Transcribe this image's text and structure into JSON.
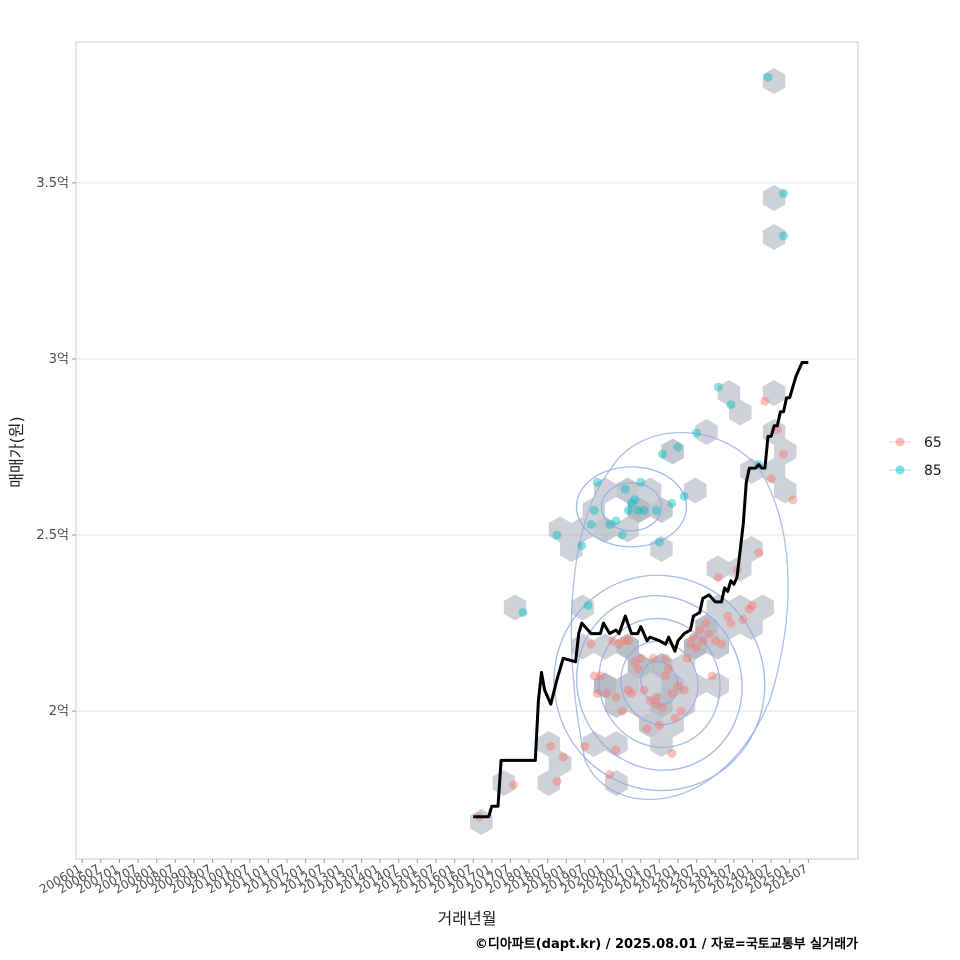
{
  "chart_data": {
    "type": "scatter",
    "xlabel": "거래년월",
    "ylabel": "매매가(원)",
    "caption": "©디아파트(dapt.kr) / 2025.08.01 / 자료=국토교통부 실거래가",
    "x_ticks": [
      "200601",
      "200607",
      "200701",
      "200707",
      "200801",
      "200807",
      "200901",
      "200907",
      "201001",
      "201007",
      "201101",
      "201107",
      "201201",
      "201207",
      "201301",
      "201307",
      "201401",
      "201407",
      "201501",
      "201507",
      "201601",
      "201607",
      "201701",
      "201707",
      "201801",
      "201807",
      "201901",
      "201907",
      "202001",
      "202007",
      "202101",
      "202107",
      "202201",
      "202207",
      "202301",
      "202307",
      "202401",
      "202407",
      "202501",
      "202507"
    ],
    "y_ticks": [
      {
        "value": 2.0,
        "label": "2억"
      },
      {
        "value": 2.5,
        "label": "2.5억"
      },
      {
        "value": 3.0,
        "label": "3억"
      },
      {
        "value": 3.5,
        "label": "3.5억"
      }
    ],
    "y_unit": "억원",
    "ylim": [
      1.58,
      3.9
    ],
    "xlim": [
      "200511",
      "202611"
    ],
    "grid": "horizontal",
    "legend": {
      "position": "right",
      "entries": [
        {
          "label": "65",
          "color": "#F8766D"
        },
        {
          "label": "85",
          "color": "#00BFC4"
        }
      ]
    },
    "line_series": {
      "name": "moving average",
      "color": "#000000",
      "points": [
        [
          "2016-07",
          1.7
        ],
        [
          "2016-12",
          1.7
        ],
        [
          "2017-01",
          1.73
        ],
        [
          "2017-03",
          1.73
        ],
        [
          "2017-04",
          1.86
        ],
        [
          "2018-03",
          1.86
        ],
        [
          "2018-04",
          2.03
        ],
        [
          "2018-05",
          2.11
        ],
        [
          "2018-06",
          2.06
        ],
        [
          "2018-08",
          2.02
        ],
        [
          "2018-10",
          2.09
        ],
        [
          "2018-12",
          2.15
        ],
        [
          "2019-04",
          2.14
        ],
        [
          "2019-05",
          2.22
        ],
        [
          "2019-06",
          2.25
        ],
        [
          "2019-09",
          2.22
        ],
        [
          "2019-12",
          2.22
        ],
        [
          "2020-01",
          2.25
        ],
        [
          "2020-03",
          2.22
        ],
        [
          "2020-05",
          2.23
        ],
        [
          "2020-06",
          2.22
        ],
        [
          "2020-08",
          2.27
        ],
        [
          "2020-10",
          2.22
        ],
        [
          "2020-12",
          2.22
        ],
        [
          "2021-01",
          2.24
        ],
        [
          "2021-03",
          2.2
        ],
        [
          "2021-04",
          2.21
        ],
        [
          "2021-07",
          2.2
        ],
        [
          "2021-09",
          2.19
        ],
        [
          "2021-10",
          2.21
        ],
        [
          "2021-12",
          2.17
        ],
        [
          "2022-01",
          2.2
        ],
        [
          "2022-03",
          2.22
        ],
        [
          "2022-05",
          2.23
        ],
        [
          "2022-06",
          2.27
        ],
        [
          "2022-08",
          2.28
        ],
        [
          "2022-09",
          2.32
        ],
        [
          "2022-11",
          2.33
        ],
        [
          "2023-01",
          2.31
        ],
        [
          "2023-03",
          2.31
        ],
        [
          "2023-04",
          2.35
        ],
        [
          "2023-05",
          2.34
        ],
        [
          "2023-06",
          2.37
        ],
        [
          "2023-07",
          2.36
        ],
        [
          "2023-08",
          2.38
        ],
        [
          "2023-10",
          2.53
        ],
        [
          "2023-11",
          2.65
        ],
        [
          "2023-12",
          2.69
        ],
        [
          "2024-02",
          2.69
        ],
        [
          "2024-03",
          2.7
        ],
        [
          "2024-04",
          2.69
        ],
        [
          "2024-05",
          2.69
        ],
        [
          "2024-06",
          2.78
        ],
        [
          "2024-07",
          2.78
        ],
        [
          "2024-08",
          2.81
        ],
        [
          "2024-09",
          2.81
        ],
        [
          "2024-10",
          2.85
        ],
        [
          "2024-11",
          2.85
        ],
        [
          "2024-12",
          2.89
        ],
        [
          "2025-01",
          2.89
        ],
        [
          "2025-03",
          2.95
        ],
        [
          "2025-05",
          2.99
        ],
        [
          "2025-07",
          2.99
        ]
      ]
    },
    "series": [
      {
        "name": "65",
        "color": "#F8766D",
        "points": [
          [
            "2016-09",
            1.7
          ],
          [
            "2017-08",
            1.79
          ],
          [
            "2018-08",
            1.9
          ],
          [
            "2018-10",
            1.8
          ],
          [
            "2018-12",
            1.87
          ],
          [
            "2019-07",
            1.9
          ],
          [
            "2019-09",
            2.19
          ],
          [
            "2019-10",
            2.1
          ],
          [
            "2019-11",
            2.05
          ],
          [
            "2019-12",
            2.1
          ],
          [
            "2020-02",
            2.05
          ],
          [
            "2020-03",
            1.82
          ],
          [
            "2020-04",
            2.2
          ],
          [
            "2020-05",
            1.89
          ],
          [
            "2020-05",
            2.04
          ],
          [
            "2020-06",
            2.19
          ],
          [
            "2020-07",
            2.0
          ],
          [
            "2020-08",
            2.2
          ],
          [
            "2020-09",
            2.06
          ],
          [
            "2020-10",
            2.05
          ],
          [
            "2020-11",
            2.14
          ],
          [
            "2020-12",
            2.12
          ],
          [
            "2021-01",
            2.15
          ],
          [
            "2021-02",
            2.06
          ],
          [
            "2021-03",
            1.95
          ],
          [
            "2021-04",
            2.03
          ],
          [
            "2021-05",
            2.15
          ],
          [
            "2021-06",
            2.02
          ],
          [
            "2021-07",
            1.96
          ],
          [
            "2021-08",
            2.01
          ],
          [
            "2021-09",
            2.1
          ],
          [
            "2021-10",
            2.12
          ],
          [
            "2021-11",
            2.05
          ],
          [
            "2021-12",
            1.98
          ],
          [
            "2022-01",
            2.07
          ],
          [
            "2022-02",
            2.0
          ],
          [
            "2022-03",
            2.06
          ],
          [
            "2022-04",
            2.15
          ],
          [
            "2022-05",
            2.19
          ],
          [
            "2022-06",
            2.21
          ],
          [
            "2022-07",
            2.18
          ],
          [
            "2022-08",
            2.23
          ],
          [
            "2022-09",
            2.2
          ],
          [
            "2022-10",
            2.25
          ],
          [
            "2022-11",
            2.22
          ],
          [
            "2022-12",
            2.1
          ],
          [
            "2023-01",
            2.2
          ],
          [
            "2023-02",
            2.38
          ],
          [
            "2023-03",
            2.19
          ],
          [
            "2023-05",
            2.27
          ],
          [
            "2023-06",
            2.25
          ],
          [
            "2023-08",
            2.4
          ],
          [
            "2023-10",
            2.26
          ],
          [
            "2023-12",
            2.29
          ],
          [
            "2024-01",
            2.3
          ],
          [
            "2024-03",
            2.45
          ],
          [
            "2024-05",
            2.88
          ],
          [
            "2024-07",
            2.66
          ],
          [
            "2024-09",
            2.8
          ],
          [
            "2024-11",
            2.73
          ],
          [
            "2025-02",
            2.6
          ],
          [
            "2021-06",
            2.04
          ],
          [
            "2021-09",
            2.15
          ],
          [
            "2020-09",
            2.2
          ],
          [
            "2021-11",
            1.88
          ]
        ]
      },
      {
        "name": "85",
        "color": "#00BFC4",
        "points": [
          [
            "2017-11",
            2.28
          ],
          [
            "2018-10",
            2.5
          ],
          [
            "2019-06",
            2.47
          ],
          [
            "2019-08",
            2.3
          ],
          [
            "2019-09",
            2.53
          ],
          [
            "2019-10",
            2.57
          ],
          [
            "2019-11",
            2.65
          ],
          [
            "2020-03",
            2.53
          ],
          [
            "2020-05",
            2.54
          ],
          [
            "2020-07",
            2.5
          ],
          [
            "2020-08",
            2.63
          ],
          [
            "2020-09",
            2.57
          ],
          [
            "2020-10",
            2.59
          ],
          [
            "2020-11",
            2.6
          ],
          [
            "2020-12",
            2.57
          ],
          [
            "2021-01",
            2.65
          ],
          [
            "2021-02",
            2.57
          ],
          [
            "2021-06",
            2.57
          ],
          [
            "2021-07",
            2.48
          ],
          [
            "2021-08",
            2.73
          ],
          [
            "2021-11",
            2.59
          ],
          [
            "2022-01",
            2.75
          ],
          [
            "2022-03",
            2.61
          ],
          [
            "2022-07",
            2.79
          ],
          [
            "2023-02",
            2.92
          ],
          [
            "2023-06",
            2.87
          ],
          [
            "2024-06",
            3.8
          ],
          [
            "2024-11",
            3.47
          ],
          [
            "2024-11",
            3.35
          ],
          [
            "2024-03",
            2.7
          ]
        ]
      }
    ],
    "overlays": [
      "hexbin density",
      "2D density contours"
    ]
  }
}
